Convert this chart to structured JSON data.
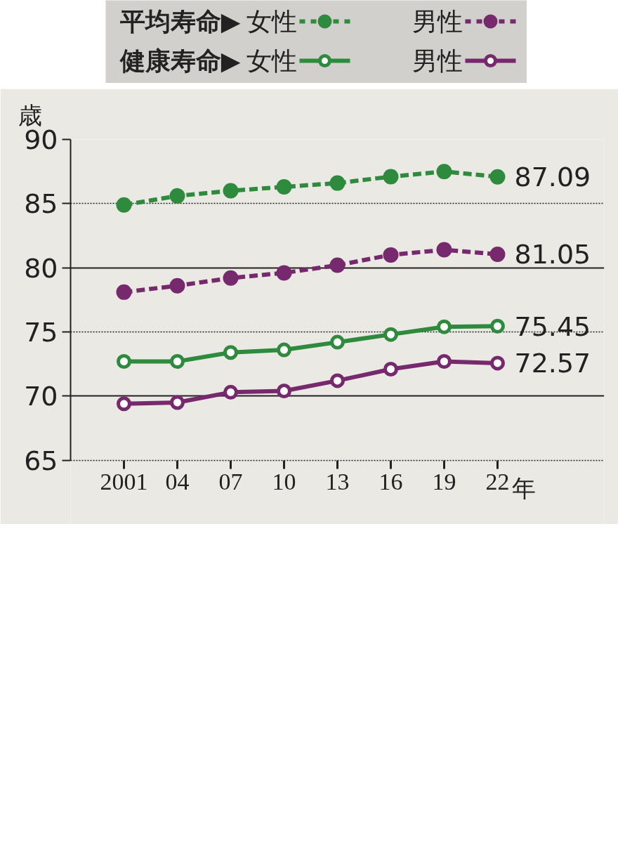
{
  "chart_data": {
    "type": "line",
    "ylabel": "歳",
    "xlabel": "年",
    "x": [
      2001,
      2004,
      2007,
      2010,
      2013,
      2016,
      2019,
      2022
    ],
    "xlim": [
      1998,
      2028
    ],
    "xticks": [
      {
        "value": 2001,
        "label": "2001"
      },
      {
        "value": 2004,
        "label": "04"
      },
      {
        "value": 2007,
        "label": "07"
      },
      {
        "value": 2010,
        "label": "10"
      },
      {
        "value": 2013,
        "label": "13"
      },
      {
        "value": 2016,
        "label": "16"
      },
      {
        "value": 2019,
        "label": "19"
      },
      {
        "value": 2022,
        "label": "22"
      }
    ],
    "ylim": [
      65,
      90
    ],
    "yticks": [
      65,
      70,
      75,
      80,
      85,
      90
    ],
    "grid": "y",
    "legend": "top",
    "marker": "circle",
    "series": [
      {
        "name": "平均寿命▶ 女性",
        "color": "#2e8a3c",
        "line_style": "dashed",
        "values": [
          84.9,
          85.6,
          86.0,
          86.3,
          86.6,
          87.1,
          87.5,
          87.09
        ],
        "value_labels": [
          null,
          null,
          null,
          null,
          null,
          null,
          null,
          "87.09"
        ]
      },
      {
        "name": "男性",
        "color": "#76296c",
        "line_style": "dashed",
        "values": [
          78.1,
          78.6,
          79.2,
          79.6,
          80.2,
          81.0,
          81.4,
          81.05
        ],
        "value_labels": [
          null,
          null,
          null,
          null,
          null,
          null,
          null,
          "81.05"
        ]
      },
      {
        "name": "健康寿命▶ 女性",
        "color": "#2e8a3c",
        "line_style": "solid",
        "values": [
          72.7,
          72.7,
          73.4,
          73.6,
          74.2,
          74.8,
          75.4,
          75.45
        ],
        "value_labels": [
          null,
          null,
          null,
          null,
          null,
          null,
          null,
          "75.45"
        ]
      },
      {
        "name": "男性",
        "color": "#76296c",
        "line_style": "solid",
        "values": [
          69.4,
          69.5,
          70.3,
          70.4,
          71.2,
          72.1,
          72.7,
          72.57
        ],
        "value_labels": [
          null,
          null,
          null,
          null,
          null,
          null,
          null,
          "72.57"
        ]
      }
    ]
  }
}
